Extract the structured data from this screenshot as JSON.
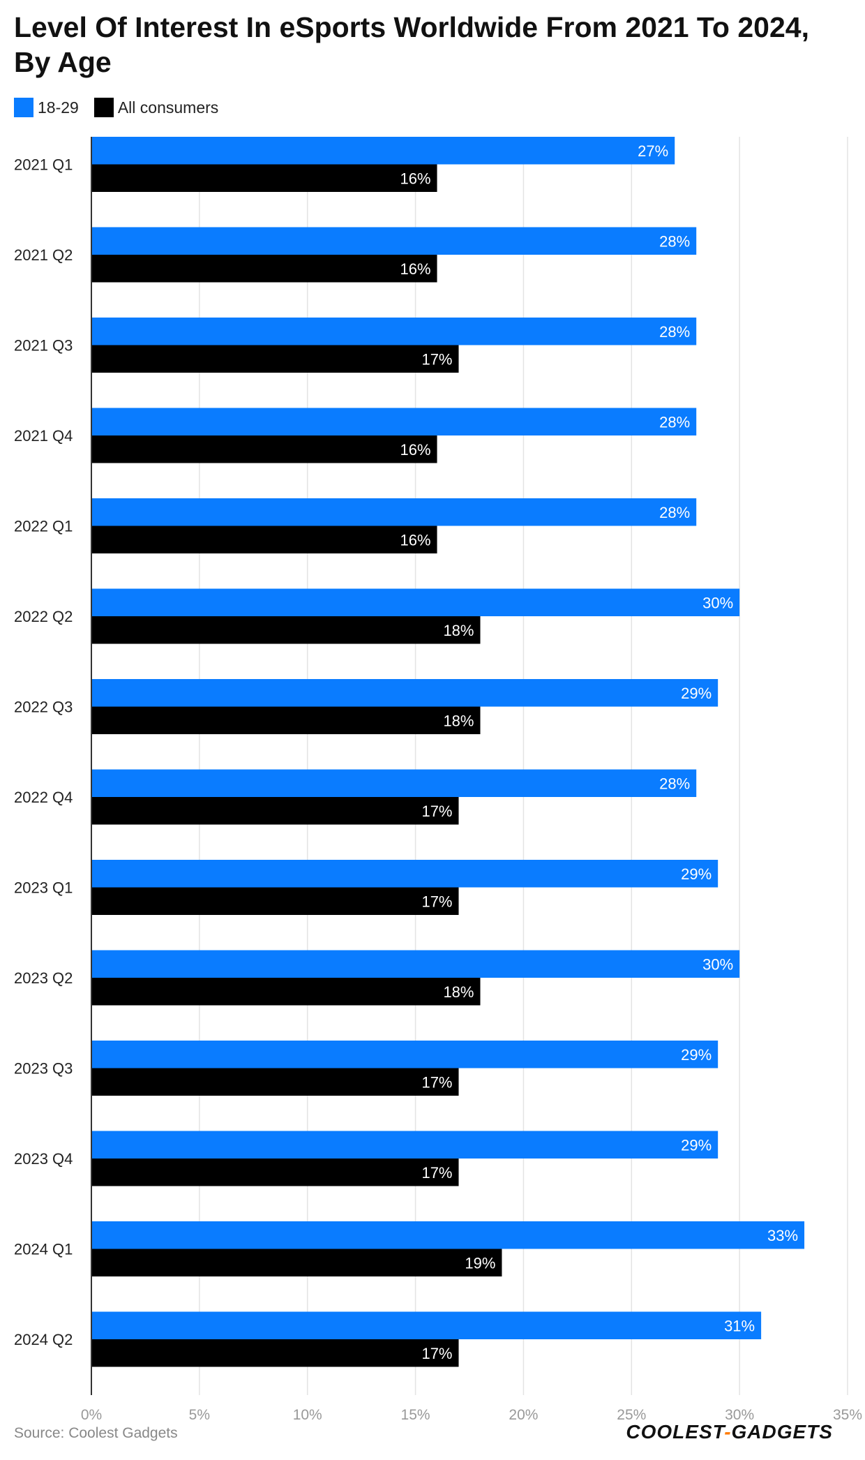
{
  "title": "Level Of Interest In eSports Worldwide From 2021 To 2024, By Age",
  "source": "Source: Coolest Gadgets",
  "brand": {
    "left": "COOLEST",
    "dash": "-",
    "right": "GADGETS"
  },
  "colors": {
    "series1": "#0a7cff",
    "series2": "#000000",
    "grid": "#e3e3e3",
    "axis": "#333333",
    "tick": "#999999"
  },
  "chart_data": {
    "type": "bar",
    "orientation": "horizontal",
    "categories": [
      "2021 Q1",
      "2021 Q2",
      "2021 Q3",
      "2021 Q4",
      "2022 Q1",
      "2022 Q2",
      "2022 Q3",
      "2022 Q4",
      "2023 Q1",
      "2023 Q2",
      "2023 Q3",
      "2023 Q4",
      "2024 Q1",
      "2024 Q2"
    ],
    "series": [
      {
        "name": "18-29",
        "values": [
          27,
          28,
          28,
          28,
          28,
          30,
          29,
          28,
          29,
          30,
          29,
          29,
          33,
          31
        ]
      },
      {
        "name": "All consumers",
        "values": [
          16,
          16,
          17,
          16,
          16,
          18,
          18,
          17,
          17,
          18,
          17,
          17,
          19,
          17
        ]
      }
    ],
    "value_suffix": "%",
    "xlim": [
      0,
      35
    ],
    "xticks": [
      "0%",
      "5%",
      "10%",
      "15%",
      "20%",
      "25%",
      "30%",
      "35%"
    ],
    "grid": true,
    "legend": "top-left"
  }
}
